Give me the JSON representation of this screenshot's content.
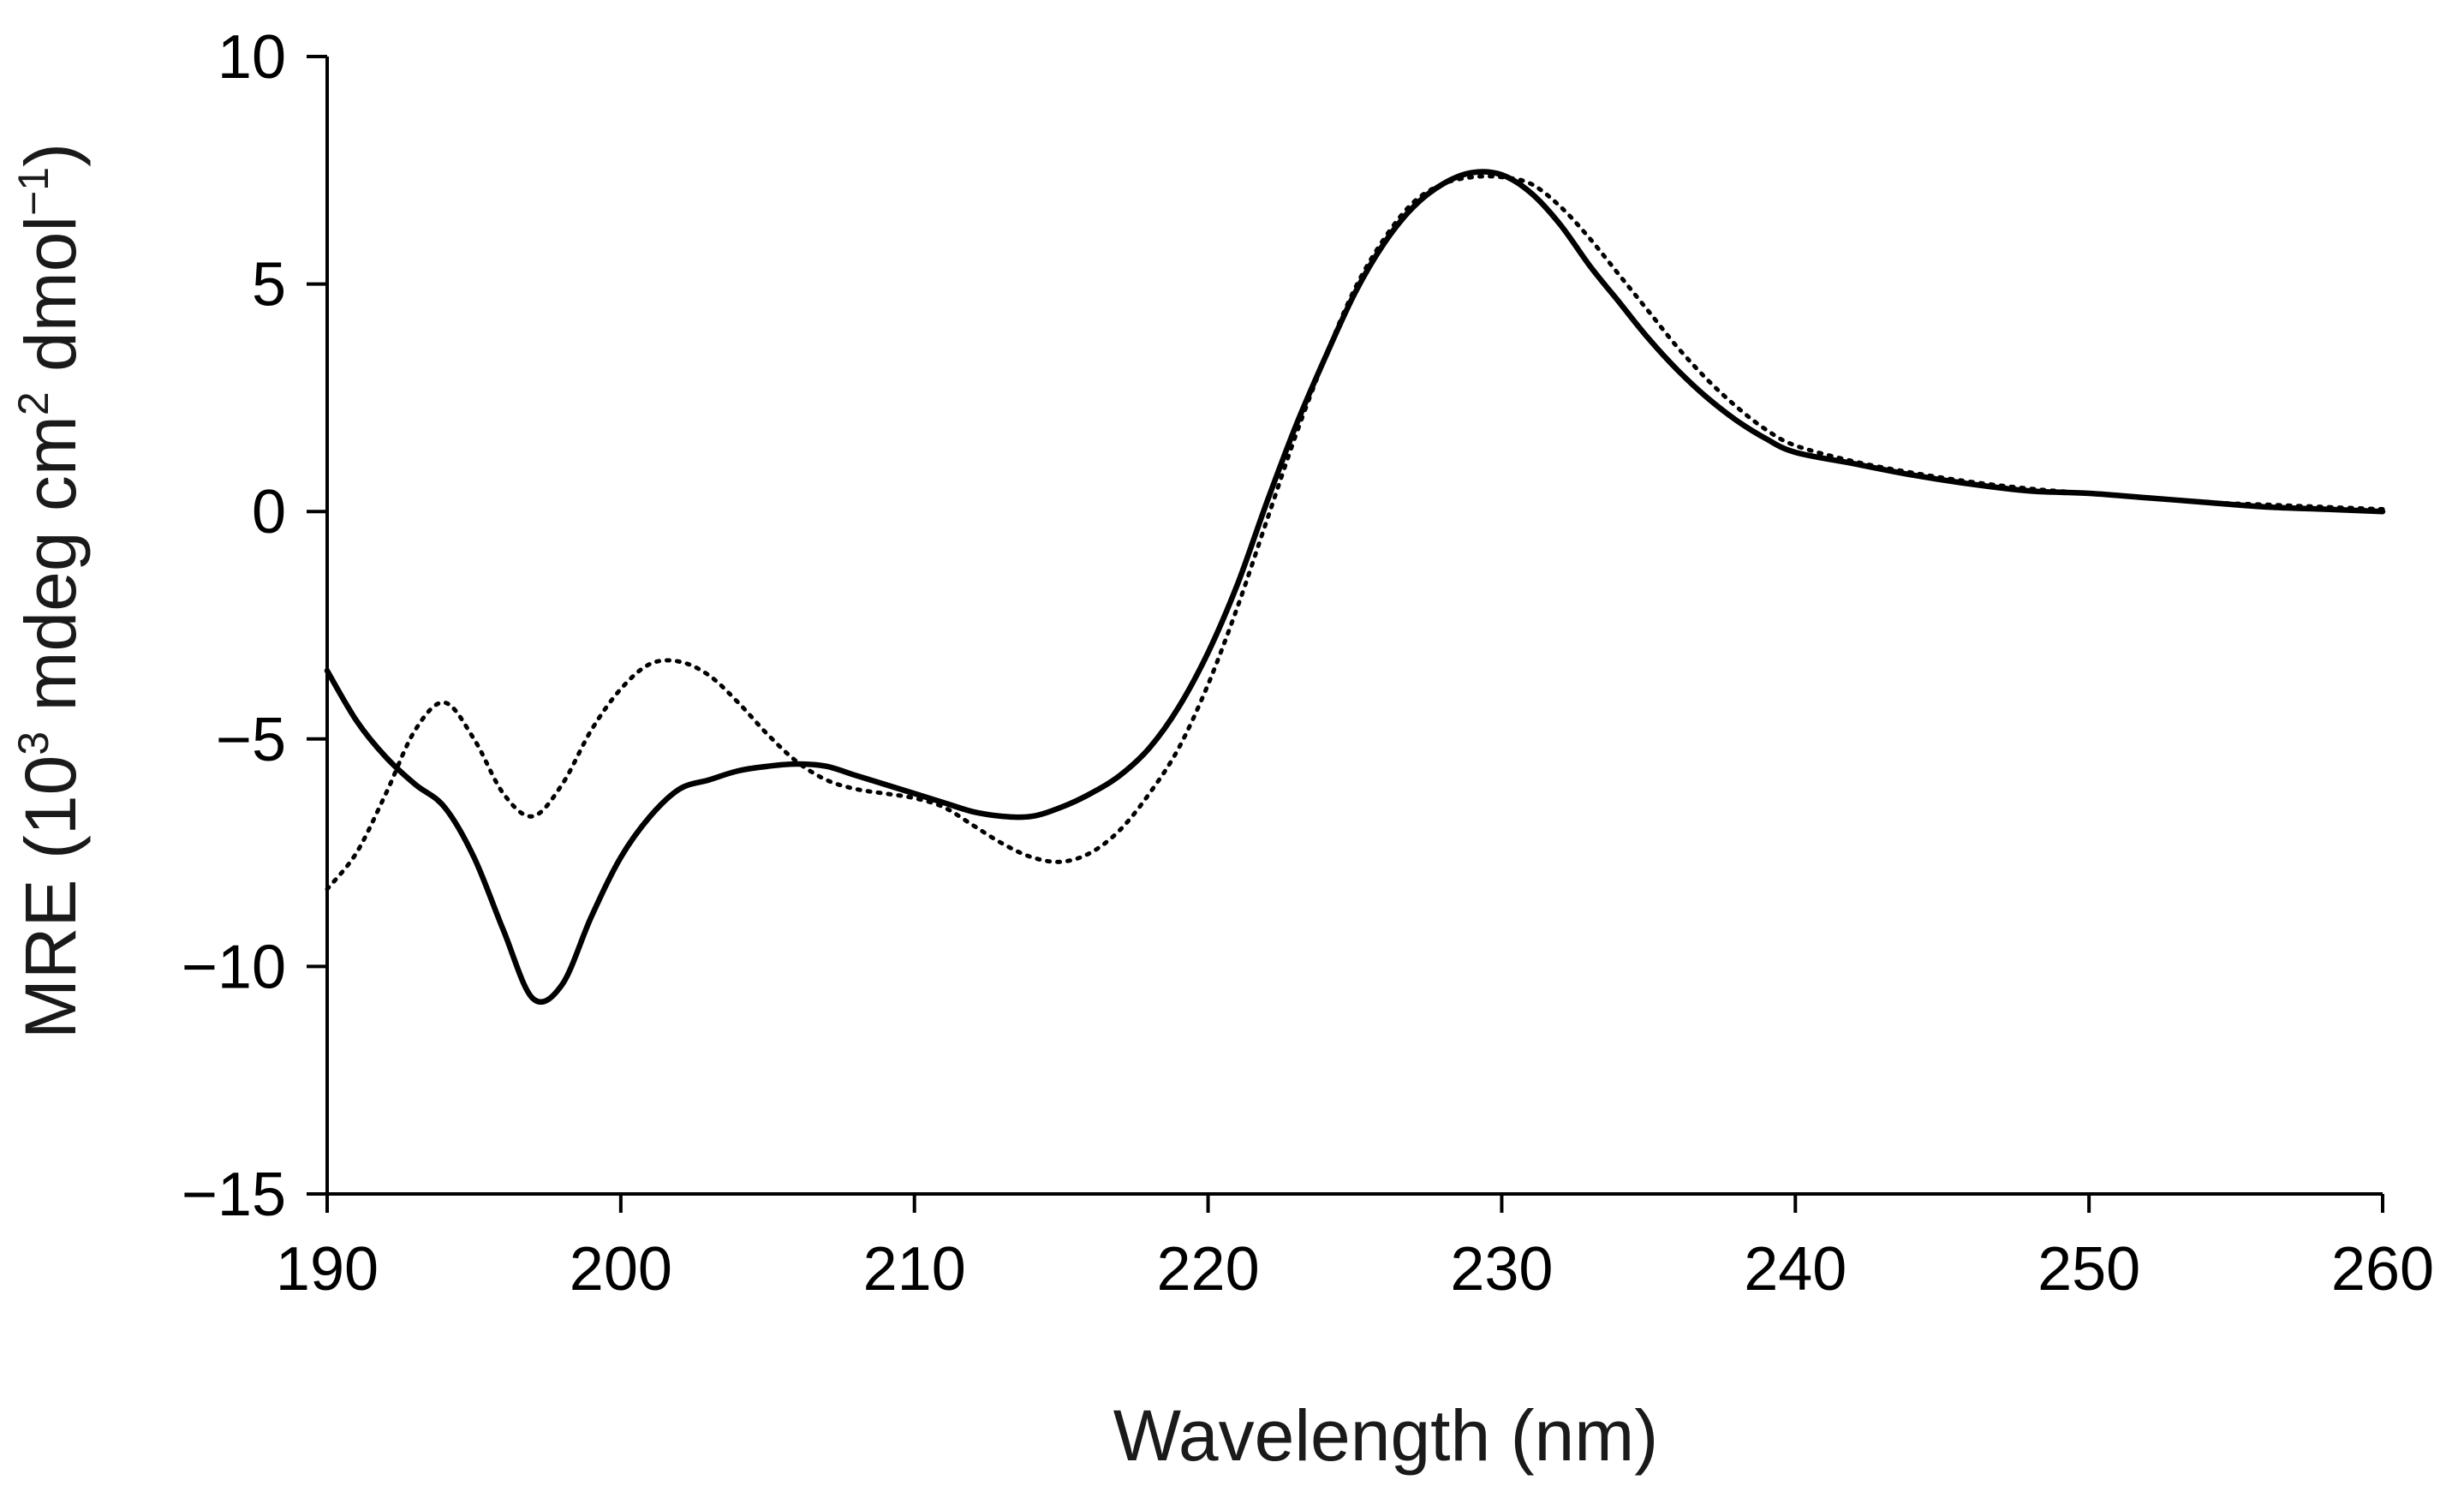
{
  "chart_data": {
    "type": "line",
    "title": "",
    "xlabel": "Wavelength (nm)",
    "ylabel": {
      "prefix": "MRE (10",
      "exp1": "3",
      "middle": " mdeg cm",
      "exp2": "2",
      "middle2": " dmol",
      "exp3": "−1",
      "suffix": ")"
    },
    "xlim": [
      190,
      260
    ],
    "ylim": [
      -15,
      10
    ],
    "x_ticks": [
      190,
      200,
      210,
      220,
      230,
      240,
      250,
      260
    ],
    "y_ticks": [
      -15,
      -10,
      -5,
      0,
      5,
      10
    ],
    "x_tick_labels": [
      "190",
      "200",
      "210",
      "220",
      "230",
      "240",
      "250",
      "260"
    ],
    "y_tick_labels": [
      "−15",
      "−10",
      "−5",
      "0",
      "5",
      "10"
    ],
    "grid": false,
    "series": [
      {
        "name": "solid",
        "style": "solid",
        "color": "#000000",
        "x": [
          190,
          191,
          192,
          193,
          194,
          195,
          196,
          197,
          198,
          199,
          200,
          201,
          202,
          203,
          204,
          205,
          206,
          207,
          208,
          209,
          210,
          211,
          212,
          213,
          214,
          215,
          216,
          217,
          218,
          219,
          220,
          221,
          222,
          223,
          224,
          225,
          226,
          227,
          228,
          229,
          230,
          231,
          232,
          233,
          234,
          235,
          236,
          237,
          238,
          239,
          240,
          242,
          244,
          246,
          248,
          250,
          252,
          254,
          256,
          258,
          260
        ],
        "y": [
          -3.5,
          -4.6,
          -5.4,
          -6.0,
          -6.5,
          -7.6,
          -9.2,
          -10.7,
          -10.4,
          -8.9,
          -7.6,
          -6.7,
          -6.1,
          -5.9,
          -5.7,
          -5.6,
          -5.55,
          -5.6,
          -5.8,
          -6.0,
          -6.2,
          -6.4,
          -6.6,
          -6.7,
          -6.7,
          -6.5,
          -6.2,
          -5.8,
          -5.2,
          -4.3,
          -3.1,
          -1.6,
          0.2,
          1.9,
          3.4,
          4.8,
          5.9,
          6.7,
          7.2,
          7.45,
          7.4,
          7.0,
          6.3,
          5.4,
          4.6,
          3.8,
          3.1,
          2.5,
          2.0,
          1.6,
          1.3,
          1.05,
          0.8,
          0.6,
          0.45,
          0.4,
          0.3,
          0.2,
          0.1,
          0.05,
          0.0
        ]
      },
      {
        "name": "dotted",
        "style": "dotted",
        "color": "#000000",
        "x": [
          190,
          191,
          192,
          193,
          194,
          195,
          196,
          197,
          198,
          199,
          200,
          201,
          202,
          203,
          204,
          205,
          206,
          207,
          208,
          209,
          210,
          211,
          212,
          213,
          214,
          215,
          216,
          217,
          218,
          219,
          220,
          221,
          222,
          223,
          224,
          225,
          226,
          227,
          228,
          229,
          230,
          231,
          232,
          233,
          234,
          235,
          236,
          237,
          238,
          239,
          240,
          242,
          244,
          246,
          248,
          250,
          252,
          254,
          256,
          258,
          260
        ],
        "y": [
          -8.3,
          -7.5,
          -6.2,
          -4.8,
          -4.2,
          -5.0,
          -6.2,
          -6.7,
          -6.0,
          -4.8,
          -3.9,
          -3.35,
          -3.3,
          -3.6,
          -4.2,
          -4.9,
          -5.5,
          -5.9,
          -6.1,
          -6.2,
          -6.3,
          -6.5,
          -6.9,
          -7.3,
          -7.6,
          -7.7,
          -7.5,
          -7.0,
          -6.2,
          -5.2,
          -3.8,
          -2.1,
          -0.2,
          1.7,
          3.4,
          4.9,
          6.0,
          6.8,
          7.2,
          7.35,
          7.35,
          7.2,
          6.7,
          6.0,
          5.2,
          4.4,
          3.6,
          2.9,
          2.3,
          1.8,
          1.45,
          1.1,
          0.85,
          0.65,
          0.5,
          0.4,
          0.3,
          0.2,
          0.15,
          0.1,
          0.05
        ]
      }
    ]
  }
}
